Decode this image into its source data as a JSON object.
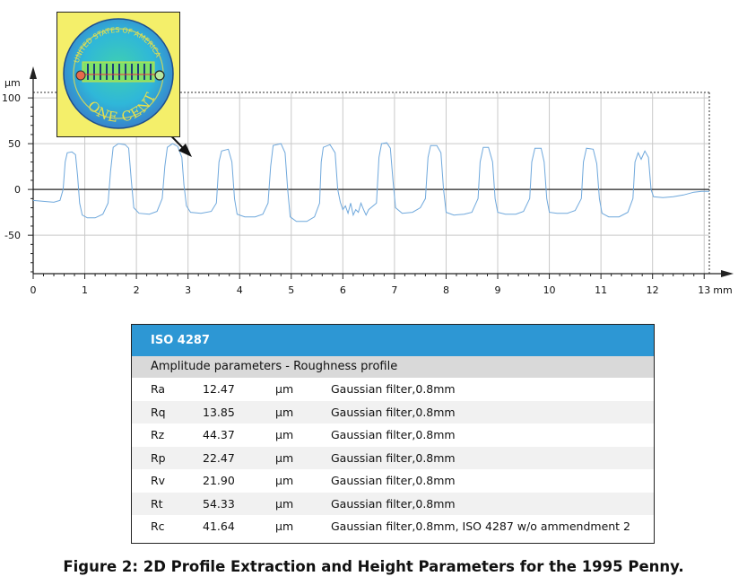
{
  "chart_data": {
    "type": "line",
    "xlabel": "",
    "ylabel": "",
    "x_unit": "mm",
    "y_unit": "µm",
    "xlim": [
      0,
      13.1
    ],
    "ylim": [
      -92,
      106
    ],
    "x_ticks": [
      0,
      1,
      2,
      3,
      4,
      5,
      6,
      7,
      8,
      9,
      10,
      11,
      12,
      13
    ],
    "y_ticks": [
      100,
      50,
      0,
      -50
    ],
    "grid": true,
    "series": [
      {
        "points": [
          [
            0.0,
            -12
          ],
          [
            0.2,
            -13
          ],
          [
            0.4,
            -14
          ],
          [
            0.52,
            -12
          ],
          [
            0.58,
            0
          ],
          [
            0.62,
            30
          ],
          [
            0.66,
            40
          ],
          [
            0.75,
            41
          ],
          [
            0.82,
            38
          ],
          [
            0.86,
            15
          ],
          [
            0.9,
            -15
          ],
          [
            0.95,
            -28
          ],
          [
            1.05,
            -31
          ],
          [
            1.2,
            -31
          ],
          [
            1.35,
            -27
          ],
          [
            1.45,
            -15
          ],
          [
            1.5,
            20
          ],
          [
            1.55,
            46
          ],
          [
            1.65,
            50
          ],
          [
            1.78,
            49
          ],
          [
            1.85,
            45
          ],
          [
            1.9,
            10
          ],
          [
            1.95,
            -20
          ],
          [
            2.05,
            -26
          ],
          [
            2.25,
            -27
          ],
          [
            2.4,
            -24
          ],
          [
            2.5,
            -10
          ],
          [
            2.55,
            25
          ],
          [
            2.6,
            46
          ],
          [
            2.7,
            50
          ],
          [
            2.8,
            47
          ],
          [
            2.88,
            35
          ],
          [
            2.92,
            5
          ],
          [
            2.97,
            -18
          ],
          [
            3.05,
            -25
          ],
          [
            3.25,
            -26
          ],
          [
            3.45,
            -24
          ],
          [
            3.55,
            -15
          ],
          [
            3.6,
            30
          ],
          [
            3.65,
            42
          ],
          [
            3.78,
            44
          ],
          [
            3.85,
            30
          ],
          [
            3.9,
            -10
          ],
          [
            3.95,
            -27
          ],
          [
            4.1,
            -30
          ],
          [
            4.3,
            -30
          ],
          [
            4.45,
            -27
          ],
          [
            4.55,
            -15
          ],
          [
            4.6,
            25
          ],
          [
            4.65,
            48
          ],
          [
            4.8,
            50
          ],
          [
            4.88,
            40
          ],
          [
            4.93,
            0
          ],
          [
            4.98,
            -30
          ],
          [
            5.1,
            -35
          ],
          [
            5.3,
            -35
          ],
          [
            5.45,
            -30
          ],
          [
            5.55,
            -15
          ],
          [
            5.58,
            30
          ],
          [
            5.62,
            46
          ],
          [
            5.75,
            49
          ],
          [
            5.85,
            40
          ],
          [
            5.9,
            0
          ],
          [
            5.95,
            -14
          ],
          [
            6.0,
            -22
          ],
          [
            6.05,
            -18
          ],
          [
            6.1,
            -26
          ],
          [
            6.15,
            -15
          ],
          [
            6.2,
            -28
          ],
          [
            6.25,
            -22
          ],
          [
            6.3,
            -25
          ],
          [
            6.35,
            -15
          ],
          [
            6.4,
            -22
          ],
          [
            6.45,
            -28
          ],
          [
            6.5,
            -22
          ],
          [
            6.65,
            -15
          ],
          [
            6.7,
            35
          ],
          [
            6.75,
            50
          ],
          [
            6.85,
            51
          ],
          [
            6.92,
            45
          ],
          [
            6.97,
            10
          ],
          [
            7.02,
            -20
          ],
          [
            7.15,
            -26
          ],
          [
            7.35,
            -25
          ],
          [
            7.5,
            -20
          ],
          [
            7.6,
            -10
          ],
          [
            7.65,
            35
          ],
          [
            7.7,
            48
          ],
          [
            7.82,
            48
          ],
          [
            7.9,
            40
          ],
          [
            7.95,
            0
          ],
          [
            8.0,
            -25
          ],
          [
            8.15,
            -28
          ],
          [
            8.35,
            -27
          ],
          [
            8.5,
            -25
          ],
          [
            8.62,
            -10
          ],
          [
            8.66,
            30
          ],
          [
            8.72,
            46
          ],
          [
            8.82,
            46
          ],
          [
            8.9,
            30
          ],
          [
            8.95,
            -10
          ],
          [
            9.0,
            -25
          ],
          [
            9.15,
            -27
          ],
          [
            9.35,
            -27
          ],
          [
            9.5,
            -24
          ],
          [
            9.62,
            -10
          ],
          [
            9.66,
            30
          ],
          [
            9.72,
            45
          ],
          [
            9.84,
            45
          ],
          [
            9.9,
            30
          ],
          [
            9.95,
            -10
          ],
          [
            10.0,
            -25
          ],
          [
            10.15,
            -26
          ],
          [
            10.35,
            -26
          ],
          [
            10.5,
            -23
          ],
          [
            10.62,
            -10
          ],
          [
            10.66,
            30
          ],
          [
            10.72,
            45
          ],
          [
            10.85,
            44
          ],
          [
            10.92,
            28
          ],
          [
            10.97,
            -10
          ],
          [
            11.02,
            -26
          ],
          [
            11.15,
            -30
          ],
          [
            11.35,
            -30
          ],
          [
            11.52,
            -25
          ],
          [
            11.62,
            -10
          ],
          [
            11.66,
            30
          ],
          [
            11.72,
            40
          ],
          [
            11.78,
            33
          ],
          [
            11.85,
            42
          ],
          [
            11.92,
            35
          ],
          [
            11.97,
            0
          ],
          [
            12.02,
            -8
          ],
          [
            12.2,
            -9
          ],
          [
            12.4,
            -8
          ],
          [
            12.6,
            -6
          ],
          [
            12.8,
            -3
          ],
          [
            12.95,
            -2
          ],
          [
            13.1,
            -2
          ]
        ]
      }
    ]
  },
  "table": {
    "header": "ISO 4287",
    "subheader": "Amplitude parameters - Roughness profile",
    "rows": [
      {
        "name": "Ra",
        "value": "12.47",
        "unit": "µm",
        "note": "Gaussian filter,0.8mm"
      },
      {
        "name": "Rq",
        "value": "13.85",
        "unit": "µm",
        "note": "Gaussian filter,0.8mm"
      },
      {
        "name": "Rz",
        "value": "44.37",
        "unit": "µm",
        "note": "Gaussian filter,0.8mm"
      },
      {
        "name": "Rp",
        "value": "22.47",
        "unit": "µm",
        "note": "Gaussian filter,0.8mm"
      },
      {
        "name": "Rv",
        "value": "21.90",
        "unit": "µm",
        "note": "Gaussian filter,0.8mm"
      },
      {
        "name": "Rt",
        "value": "54.33",
        "unit": "µm",
        "note": "Gaussian filter,0.8mm"
      },
      {
        "name": "Rc",
        "value": "41.64",
        "unit": "µm",
        "note": "Gaussian filter,0.8mm, ISO 4287 w/o ammendment 2"
      }
    ]
  },
  "inset": {
    "legend_text": "ONE CENT",
    "rim_text": "UNITED STATES OF AMERICA"
  },
  "caption": "Figure 2: 2D Profile Extraction and Height Parameters for the 1995 Penny.",
  "colors": {
    "profile_line": "#6fa8dc",
    "table_header": "#2d97d4",
    "table_subheader": "#d9d9d9",
    "inset_background": "#f4ef6a"
  }
}
